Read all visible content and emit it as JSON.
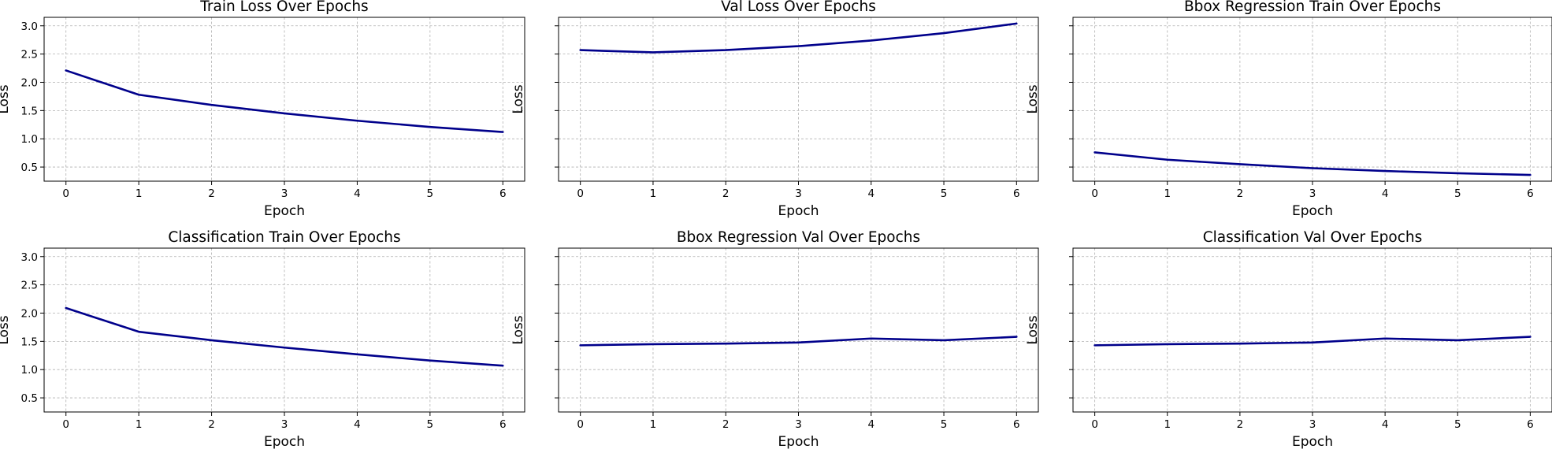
{
  "chart_data": [
    {
      "type": "line",
      "title": "Train Loss Over Epochs",
      "xlabel": "Epoch",
      "ylabel": "Loss",
      "x": [
        0,
        1,
        2,
        3,
        4,
        5,
        6
      ],
      "series": [
        {
          "values": [
            2.21,
            1.78,
            1.6,
            1.45,
            1.32,
            1.21,
            1.12
          ]
        }
      ],
      "ylim": [
        0.25,
        3.15
      ],
      "yticks": [
        0.5,
        1.0,
        1.5,
        2.0,
        2.5,
        3.0
      ],
      "xticks": [
        0,
        1,
        2,
        3,
        4,
        5,
        6
      ],
      "grid": true,
      "show_ytick_labels": true,
      "line_color": "#00008b"
    },
    {
      "type": "line",
      "title": "Val Loss Over Epochs",
      "xlabel": "Epoch",
      "ylabel": "Loss",
      "x": [
        0,
        1,
        2,
        3,
        4,
        5,
        6
      ],
      "series": [
        {
          "values": [
            2.57,
            2.53,
            2.57,
            2.64,
            2.74,
            2.87,
            3.04
          ]
        }
      ],
      "ylim": [
        0.25,
        3.15
      ],
      "yticks": [
        0.5,
        1.0,
        1.5,
        2.0,
        2.5,
        3.0
      ],
      "xticks": [
        0,
        1,
        2,
        3,
        4,
        5,
        6
      ],
      "grid": true,
      "show_ytick_labels": false,
      "line_color": "#00008b"
    },
    {
      "type": "line",
      "title": "Bbox Regression Train Over Epochs",
      "xlabel": "Epoch",
      "ylabel": "Loss",
      "x": [
        0,
        1,
        2,
        3,
        4,
        5,
        6
      ],
      "series": [
        {
          "values": [
            0.76,
            0.63,
            0.55,
            0.48,
            0.43,
            0.39,
            0.36
          ]
        }
      ],
      "ylim": [
        0.25,
        3.15
      ],
      "yticks": [
        0.5,
        1.0,
        1.5,
        2.0,
        2.5,
        3.0
      ],
      "xticks": [
        0,
        1,
        2,
        3,
        4,
        5,
        6
      ],
      "grid": true,
      "show_ytick_labels": false,
      "line_color": "#00008b"
    },
    {
      "type": "line",
      "title": "Classification Train Over Epochs",
      "xlabel": "Epoch",
      "ylabel": "Loss",
      "x": [
        0,
        1,
        2,
        3,
        4,
        5,
        6
      ],
      "series": [
        {
          "values": [
            2.09,
            1.67,
            1.52,
            1.39,
            1.27,
            1.16,
            1.07
          ]
        }
      ],
      "ylim": [
        0.25,
        3.15
      ],
      "yticks": [
        0.5,
        1.0,
        1.5,
        2.0,
        2.5,
        3.0
      ],
      "xticks": [
        0,
        1,
        2,
        3,
        4,
        5,
        6
      ],
      "grid": true,
      "show_ytick_labels": true,
      "line_color": "#00008b"
    },
    {
      "type": "line",
      "title": "Bbox Regression Val Over Epochs",
      "xlabel": "Epoch",
      "ylabel": "Loss",
      "x": [
        0,
        1,
        2,
        3,
        4,
        5,
        6
      ],
      "series": [
        {
          "values": [
            1.43,
            1.45,
            1.46,
            1.48,
            1.55,
            1.52,
            1.58
          ]
        }
      ],
      "ylim": [
        0.25,
        3.15
      ],
      "yticks": [
        0.5,
        1.0,
        1.5,
        2.0,
        2.5,
        3.0
      ],
      "xticks": [
        0,
        1,
        2,
        3,
        4,
        5,
        6
      ],
      "grid": true,
      "show_ytick_labels": false,
      "line_color": "#00008b"
    },
    {
      "type": "line",
      "title": "Classification Val Over Epochs",
      "xlabel": "Epoch",
      "ylabel": "Loss",
      "x": [
        0,
        1,
        2,
        3,
        4,
        5,
        6
      ],
      "series": [
        {
          "values": [
            1.43,
            1.45,
            1.46,
            1.48,
            1.55,
            1.52,
            1.58
          ]
        }
      ],
      "ylim": [
        0.25,
        3.15
      ],
      "yticks": [
        0.5,
        1.0,
        1.5,
        2.0,
        2.5,
        3.0
      ],
      "xticks": [
        0,
        1,
        2,
        3,
        4,
        5,
        6
      ],
      "grid": true,
      "show_ytick_labels": false,
      "line_color": "#00008b"
    }
  ]
}
